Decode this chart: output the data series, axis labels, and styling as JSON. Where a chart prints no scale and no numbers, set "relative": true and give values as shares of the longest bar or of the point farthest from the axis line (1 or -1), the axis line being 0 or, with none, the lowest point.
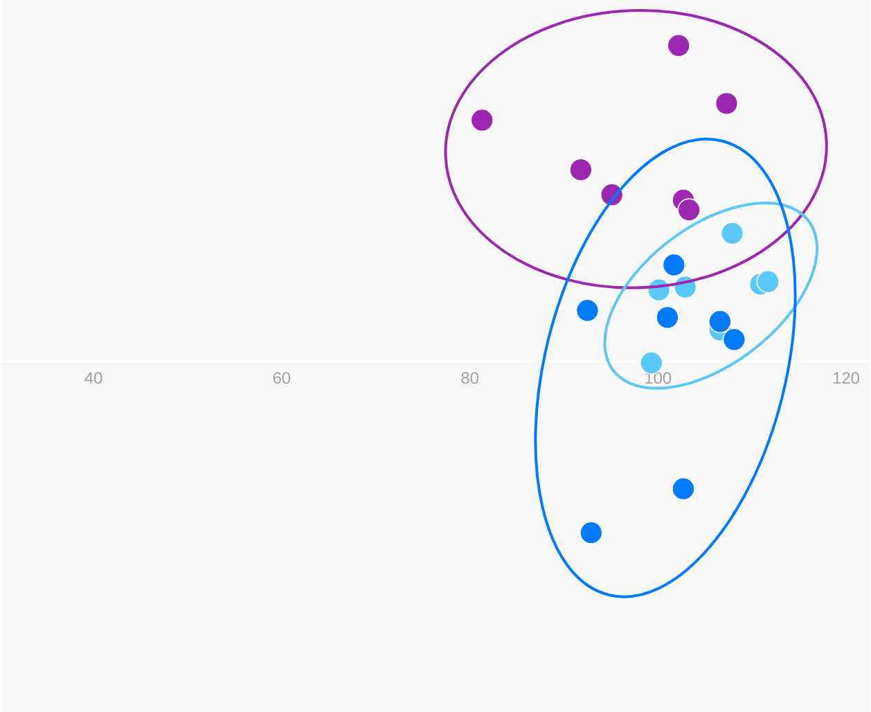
{
  "chart_data": {
    "type": "scatter",
    "relative": true,
    "grid": false,
    "legend": false,
    "marker": "circle",
    "tick_labels": "x",
    "xlim": [
      30.2,
      122.5
    ],
    "xticks": [
      40,
      60,
      80,
      100,
      120
    ],
    "series": [
      {
        "type": "scatter",
        "color": "#9c27b0",
        "x": [
          102.2,
          107.3,
          81.3,
          91.8,
          95.1,
          102.7,
          103.3
        ],
        "values": [
          1.0,
          0.817,
          0.764,
          0.607,
          0.528,
          0.511,
          0.48
        ]
      },
      {
        "type": "scatter",
        "color": "#5ac8fa",
        "x": [
          107.9,
          100.1,
          102.9,
          110.9,
          111.7,
          106.6,
          99.3
        ],
        "values": [
          0.406,
          0.227,
          0.236,
          0.245,
          0.253,
          0.1,
          -0.004
        ]
      },
      {
        "type": "scatter",
        "color": "#007aff",
        "x": [
          101.7,
          92.5,
          101.0,
          106.6,
          108.1,
          102.7,
          92.9
        ],
        "values": [
          0.306,
          0.162,
          0.14,
          0.127,
          0.07,
          -0.402,
          -0.541
        ]
      }
    ]
  }
}
